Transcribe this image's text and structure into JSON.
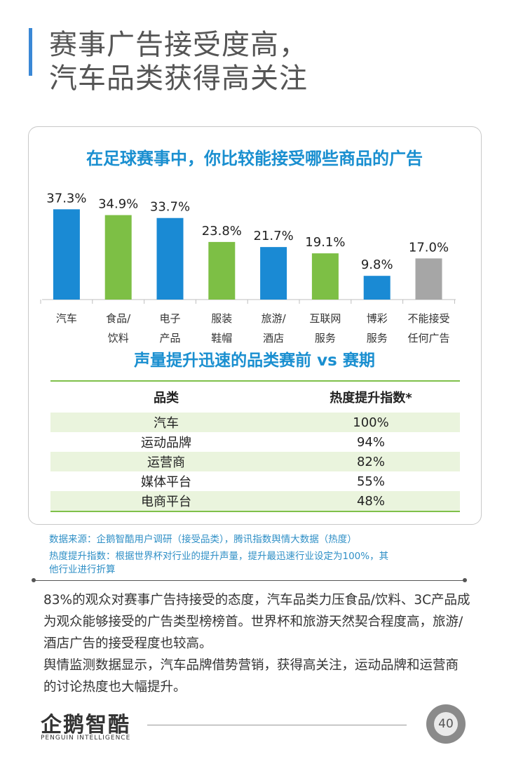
{
  "page": {
    "title_line1": "赛事广告接受度高，",
    "title_line2": "汽车品类获得高关注",
    "page_number": "40"
  },
  "chart_data": {
    "type": "bar",
    "title": "在足球赛事中，你比较能接受哪些商品的广告",
    "categories": [
      [
        "汽车"
      ],
      [
        "食品/",
        "饮料"
      ],
      [
        "电子",
        "产品"
      ],
      [
        "服装",
        "鞋帽"
      ],
      [
        "旅游/",
        "酒店"
      ],
      [
        "互联网",
        "服务"
      ],
      [
        "博彩",
        "服务"
      ],
      [
        "不能接受",
        "任何广告"
      ]
    ],
    "values": [
      37.3,
      34.9,
      33.7,
      23.8,
      21.7,
      19.1,
      9.8,
      17.0
    ],
    "value_labels": [
      "37.3%",
      "34.9%",
      "33.7%",
      "23.8%",
      "21.7%",
      "19.1%",
      "9.8%",
      "17.0%"
    ],
    "colors": [
      "#1a8ad4",
      "#7dbf45",
      "#1a8ad4",
      "#7dbf45",
      "#1a8ad4",
      "#7dbf45",
      "#1a8ad4",
      "#a6a6a6"
    ],
    "ylim": [
      0,
      40
    ],
    "grid": false
  },
  "table": {
    "title": "声量提升迅速的品类赛前 vs 赛期",
    "headers": [
      "品类",
      "热度提升指数*"
    ],
    "rows": [
      [
        "汽车",
        "100%"
      ],
      [
        "运动品牌",
        "94%"
      ],
      [
        "运营商",
        "82%"
      ],
      [
        "媒体平台",
        "55%"
      ],
      [
        "电商平台",
        "48%"
      ]
    ]
  },
  "notes": {
    "source": "数据来源：企鹅智酷用户调研（接受品类），腾讯指数舆情大数据（热度）",
    "definition_line1": "热度提升指数：根据世界杯对行业的提升声量，提升最迅速行业设定为100%，其",
    "definition_line2": "他行业进行折算"
  },
  "body": {
    "paragraph1": "83%的观众对赛事广告持接受的态度，汽车品类力压食品/饮料、3C产品成为观众能够接受的广告类型榜榜首。世界杯和旅游天然契合程度高，旅游/酒店广告的接受程度也较高。",
    "paragraph2": "舆情监测数据显示，汽车品牌借势营销，获得高关注，运动品牌和运营商的讨论热度也大幅提升。"
  },
  "logo": {
    "name": "企鹅智酷",
    "subtitle": "PENGUIN INTELLIGENCE"
  }
}
